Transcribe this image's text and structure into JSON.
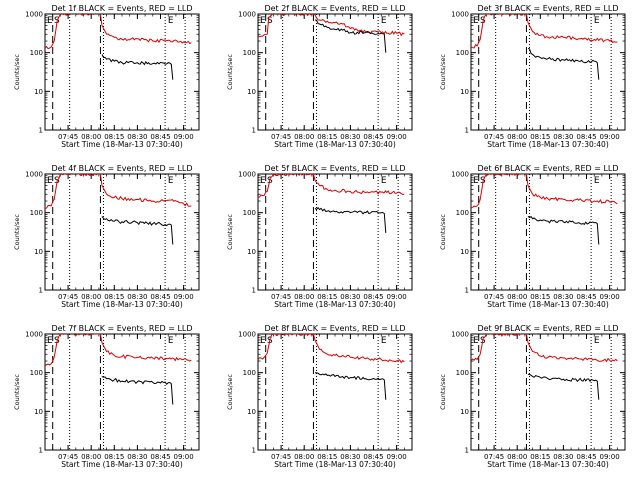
{
  "chart_data": [
    {
      "type": "line",
      "title": "Det 1f BLACK = Events, RED = LLD",
      "xlabel": "Start Time (18-Mar-13 07:30:40)",
      "ylabel": "Counts/sec",
      "yscale": "log",
      "ylim": [
        1,
        1000
      ],
      "xlim": [
        "07:30",
        "09:10"
      ],
      "x_ticks": [
        "07:45",
        "08:00",
        "08:15",
        "08:30",
        "08:45",
        "09:00"
      ],
      "y_ticks": [
        "1",
        "10",
        "100",
        "1000"
      ],
      "markers": [
        "E",
        "S",
        "E"
      ],
      "series": [
        {
          "name": "LLD",
          "color": "#e00000",
          "x": [
            "07:30",
            "07:34",
            "07:36",
            "07:38",
            "07:40",
            "08:06",
            "08:07",
            "08:10",
            "08:15",
            "08:20",
            "08:30",
            "08:40",
            "08:50",
            "09:00",
            "09:05"
          ],
          "y": [
            130,
            140,
            200,
            700,
            1000,
            1000,
            500,
            300,
            250,
            220,
            230,
            200,
            210,
            190,
            180
          ]
        },
        {
          "name": "Events",
          "color": "#000000",
          "x": [
            "08:07",
            "08:08",
            "08:15",
            "08:20",
            "08:30",
            "08:40",
            "08:50",
            "08:52",
            "08:53"
          ],
          "y": [
            90,
            75,
            60,
            55,
            55,
            52,
            55,
            50,
            20
          ]
        }
      ]
    },
    {
      "type": "line",
      "title": "Det 2f BLACK = Events, RED = LLD",
      "xlabel": "Start Time (18-Mar-13 07:30:40)",
      "ylabel": "Counts/sec",
      "yscale": "log",
      "ylim": [
        1,
        1000
      ],
      "xlim": [
        "07:30",
        "09:10"
      ],
      "x_ticks": [
        "07:45",
        "08:00",
        "08:15",
        "08:30",
        "08:45",
        "09:00"
      ],
      "y_ticks": [
        "1",
        "10",
        "100",
        "1000"
      ],
      "markers": [
        "E",
        "S",
        "E"
      ],
      "series": [
        {
          "name": "LLD",
          "color": "#e00000",
          "x": [
            "07:30",
            "07:34",
            "07:36",
            "07:37",
            "07:40",
            "08:06",
            "08:08",
            "08:10",
            "08:15",
            "08:20",
            "08:25",
            "08:30",
            "08:40",
            "08:50",
            "09:00",
            "09:05"
          ],
          "y": [
            280,
            290,
            300,
            800,
            1000,
            1000,
            800,
            700,
            650,
            600,
            550,
            420,
            350,
            330,
            320,
            300
          ]
        },
        {
          "name": "Events",
          "color": "#000000",
          "x": [
            "08:07",
            "08:10",
            "08:15",
            "08:20",
            "08:25",
            "08:30",
            "08:40",
            "08:50",
            "08:52",
            "08:53"
          ],
          "y": [
            700,
            550,
            450,
            400,
            380,
            330,
            330,
            320,
            300,
            100
          ]
        }
      ]
    },
    {
      "type": "line",
      "title": "Det 3f BLACK = Events, RED = LLD",
      "xlabel": "Start Time (18-Mar-13 07:30:40)",
      "ylabel": "Counts/sec",
      "yscale": "log",
      "ylim": [
        1,
        1000
      ],
      "xlim": [
        "07:30",
        "09:10"
      ],
      "x_ticks": [
        "07:45",
        "08:00",
        "08:15",
        "08:30",
        "08:45",
        "09:00"
      ],
      "y_ticks": [
        "1",
        "10",
        "100",
        "1000"
      ],
      "markers": [
        "E",
        "S",
        "E"
      ],
      "series": [
        {
          "name": "LLD",
          "color": "#e00000",
          "x": [
            "07:30",
            "07:34",
            "07:36",
            "07:38",
            "07:40",
            "08:06",
            "08:07",
            "08:10",
            "08:15",
            "08:20",
            "08:30",
            "08:40",
            "08:50",
            "09:00",
            "09:05"
          ],
          "y": [
            140,
            150,
            220,
            700,
            1000,
            1000,
            600,
            350,
            280,
            250,
            250,
            230,
            220,
            200,
            190
          ]
        },
        {
          "name": "Events",
          "color": "#000000",
          "x": [
            "08:07",
            "08:10",
            "08:15",
            "08:20",
            "08:30",
            "08:40",
            "08:50",
            "08:52",
            "08:53"
          ],
          "y": [
            130,
            90,
            75,
            70,
            65,
            60,
            60,
            55,
            20
          ]
        }
      ]
    },
    {
      "type": "line",
      "title": "Det 4f BLACK = Events, RED = LLD",
      "xlabel": "Start Time (18-Mar-13 07:30:40)",
      "ylabel": "Counts/sec",
      "yscale": "log",
      "ylim": [
        1,
        1000
      ],
      "xlim": [
        "07:30",
        "09:10"
      ],
      "x_ticks": [
        "07:45",
        "08:00",
        "08:15",
        "08:30",
        "08:45",
        "09:00"
      ],
      "y_ticks": [
        "1",
        "10",
        "100",
        "1000"
      ],
      "markers": [
        "E",
        "S",
        "E"
      ],
      "series": [
        {
          "name": "LLD",
          "color": "#e00000",
          "x": [
            "07:30",
            "07:34",
            "07:36",
            "07:38",
            "07:40",
            "08:06",
            "08:07",
            "08:10",
            "08:15",
            "08:20",
            "08:30",
            "08:40",
            "08:50",
            "09:00",
            "09:05"
          ],
          "y": [
            130,
            150,
            220,
            700,
            1000,
            1000,
            500,
            300,
            250,
            230,
            220,
            200,
            210,
            170,
            150
          ]
        },
        {
          "name": "Events",
          "color": "#000000",
          "x": [
            "08:07",
            "08:10",
            "08:15",
            "08:20",
            "08:30",
            "08:40",
            "08:50",
            "08:52",
            "08:53"
          ],
          "y": [
            80,
            70,
            60,
            58,
            55,
            52,
            50,
            48,
            15
          ]
        }
      ]
    },
    {
      "type": "line",
      "title": "Det 5f BLACK = Events, RED = LLD",
      "xlabel": "Start Time (18-Mar-13 07:30:40)",
      "ylabel": "Counts/sec",
      "yscale": "log",
      "ylim": [
        1,
        1000
      ],
      "xlim": [
        "07:30",
        "09:10"
      ],
      "x_ticks": [
        "07:45",
        "08:00",
        "08:15",
        "08:30",
        "08:45",
        "09:00"
      ],
      "y_ticks": [
        "1",
        "10",
        "100",
        "1000"
      ],
      "markers": [
        "E",
        "S",
        "E"
      ],
      "series": [
        {
          "name": "LLD",
          "color": "#e00000",
          "x": [
            "07:30",
            "07:34",
            "07:36",
            "07:38",
            "07:40",
            "08:06",
            "08:07",
            "08:10",
            "08:15",
            "08:20",
            "08:30",
            "08:40",
            "08:50",
            "09:00",
            "09:05"
          ],
          "y": [
            250,
            280,
            350,
            800,
            1000,
            1000,
            700,
            500,
            400,
            380,
            350,
            330,
            340,
            320,
            300
          ]
        },
        {
          "name": "Events",
          "color": "#000000",
          "x": [
            "08:07",
            "08:10",
            "08:15",
            "08:20",
            "08:30",
            "08:40",
            "08:50",
            "08:52",
            "08:53"
          ],
          "y": [
            130,
            120,
            110,
            105,
            100,
            100,
            100,
            95,
            30
          ]
        }
      ]
    },
    {
      "type": "line",
      "title": "Det 6f BLACK = Events, RED = LLD",
      "xlabel": "Start Time (18-Mar-13 07:30:40)",
      "ylabel": "Counts/sec",
      "yscale": "log",
      "ylim": [
        1,
        1000
      ],
      "xlim": [
        "07:30",
        "09:10"
      ],
      "x_ticks": [
        "07:45",
        "08:00",
        "08:15",
        "08:30",
        "08:45",
        "09:00"
      ],
      "y_ticks": [
        "1",
        "10",
        "100",
        "1000"
      ],
      "markers": [
        "E",
        "S",
        "E"
      ],
      "series": [
        {
          "name": "LLD",
          "color": "#e00000",
          "x": [
            "07:30",
            "07:34",
            "07:36",
            "07:38",
            "07:40",
            "08:06",
            "08:07",
            "08:10",
            "08:15",
            "08:20",
            "08:30",
            "08:40",
            "08:50",
            "09:00",
            "09:05"
          ],
          "y": [
            130,
            150,
            220,
            700,
            1000,
            1000,
            500,
            300,
            250,
            230,
            220,
            210,
            200,
            190,
            170
          ]
        },
        {
          "name": "Events",
          "color": "#000000",
          "x": [
            "08:07",
            "08:10",
            "08:15",
            "08:20",
            "08:30",
            "08:40",
            "08:50",
            "08:52",
            "08:53"
          ],
          "y": [
            80,
            70,
            65,
            60,
            58,
            55,
            55,
            52,
            15
          ]
        }
      ]
    },
    {
      "type": "line",
      "title": "Det 7f BLACK = Events, RED = LLD",
      "xlabel": "Start Time (18-Mar-13 07:30:40)",
      "ylabel": "Counts/sec",
      "yscale": "log",
      "ylim": [
        1,
        1000
      ],
      "xlim": [
        "07:30",
        "09:10"
      ],
      "x_ticks": [
        "07:45",
        "08:00",
        "08:15",
        "08:30",
        "08:45",
        "09:00"
      ],
      "y_ticks": [
        "1",
        "10",
        "100",
        "1000"
      ],
      "markers": [
        "E",
        "S",
        "E"
      ],
      "series": [
        {
          "name": "LLD",
          "color": "#e00000",
          "x": [
            "07:30",
            "07:34",
            "07:36",
            "07:38",
            "07:40",
            "08:06",
            "08:07",
            "08:10",
            "08:15",
            "08:20",
            "08:30",
            "08:40",
            "08:50",
            "09:00",
            "09:05"
          ],
          "y": [
            150,
            170,
            250,
            700,
            1000,
            1000,
            600,
            350,
            280,
            260,
            250,
            240,
            230,
            220,
            210
          ]
        },
        {
          "name": "Events",
          "color": "#000000",
          "x": [
            "08:07",
            "08:10",
            "08:15",
            "08:20",
            "08:30",
            "08:40",
            "08:50",
            "08:52",
            "08:53"
          ],
          "y": [
            80,
            70,
            65,
            60,
            58,
            56,
            55,
            52,
            15
          ]
        }
      ]
    },
    {
      "type": "line",
      "title": "Det 8f BLACK = Events, RED = LLD",
      "xlabel": "Start Time (18-Mar-13 07:30:40)",
      "ylabel": "Counts/sec",
      "yscale": "log",
      "ylim": [
        1,
        1000
      ],
      "xlim": [
        "07:30",
        "09:10"
      ],
      "x_ticks": [
        "07:45",
        "08:00",
        "08:15",
        "08:30",
        "08:45",
        "09:00"
      ],
      "y_ticks": [
        "1",
        "10",
        "100",
        "1000"
      ],
      "markers": [
        "E",
        "S",
        "E"
      ],
      "series": [
        {
          "name": "LLD",
          "color": "#e00000",
          "x": [
            "07:30",
            "07:34",
            "07:36",
            "07:38",
            "07:40",
            "08:06",
            "08:07",
            "08:10",
            "08:15",
            "08:20",
            "08:30",
            "08:40",
            "08:50",
            "09:00",
            "09:05"
          ],
          "y": [
            220,
            250,
            320,
            800,
            1000,
            1000,
            700,
            400,
            300,
            280,
            250,
            230,
            220,
            200,
            190
          ]
        },
        {
          "name": "Events",
          "color": "#000000",
          "x": [
            "08:07",
            "08:10",
            "08:15",
            "08:20",
            "08:30",
            "08:40",
            "08:50",
            "08:52",
            "08:53"
          ],
          "y": [
            100,
            90,
            85,
            80,
            75,
            70,
            68,
            65,
            20
          ]
        }
      ]
    },
    {
      "type": "line",
      "title": "Det 9f BLACK = Events, RED = LLD",
      "xlabel": "Start Time (18-Mar-13 07:30:40)",
      "ylabel": "Counts/sec",
      "yscale": "log",
      "ylim": [
        1,
        1000
      ],
      "xlim": [
        "07:30",
        "09:10"
      ],
      "x_ticks": [
        "07:45",
        "08:00",
        "08:15",
        "08:30",
        "08:45",
        "09:00"
      ],
      "y_ticks": [
        "1",
        "10",
        "100",
        "1000"
      ],
      "markers": [
        "E",
        "S",
        "E"
      ],
      "series": [
        {
          "name": "LLD",
          "color": "#e00000",
          "x": [
            "07:30",
            "07:34",
            "07:36",
            "07:38",
            "07:40",
            "08:06",
            "08:07",
            "08:10",
            "08:15",
            "08:20",
            "08:30",
            "08:40",
            "08:50",
            "09:00",
            "09:05"
          ],
          "y": [
            200,
            220,
            300,
            800,
            1000,
            1000,
            600,
            350,
            270,
            250,
            240,
            230,
            220,
            210,
            200
          ]
        },
        {
          "name": "Events",
          "color": "#000000",
          "x": [
            "08:07",
            "08:10",
            "08:15",
            "08:20",
            "08:30",
            "08:40",
            "08:50",
            "08:52",
            "08:53"
          ],
          "y": [
            90,
            80,
            75,
            70,
            68,
            65,
            62,
            60,
            20
          ]
        }
      ]
    }
  ],
  "annotations": {
    "dashed_lines_at": [
      "07:35",
      "08:06"
    ],
    "dotted_lines_at": [
      "07:46",
      "08:08",
      "08:48",
      "09:01"
    ]
  }
}
